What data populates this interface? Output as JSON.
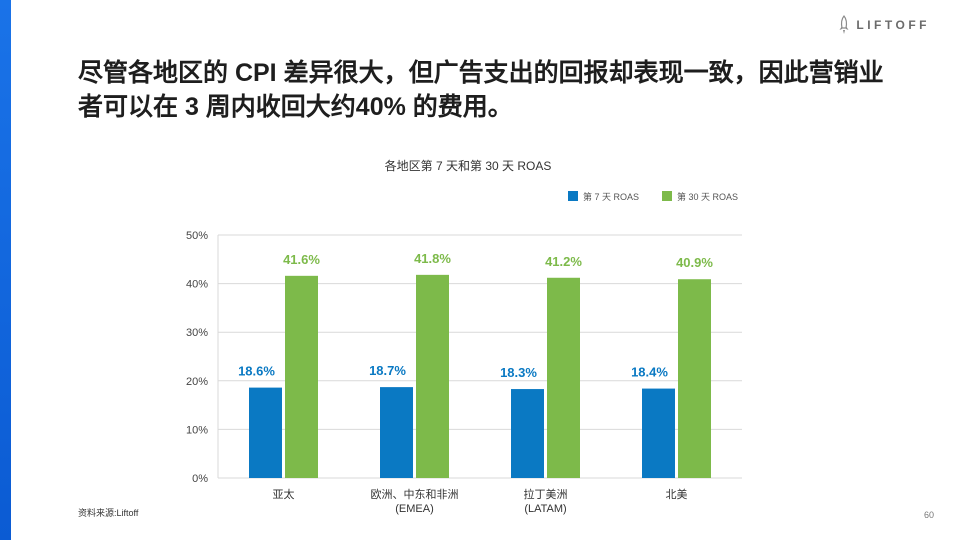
{
  "brand": {
    "logo_text": "LIFTOFF",
    "icon": "rocket-icon"
  },
  "slide": {
    "headline": "尽管各地区的 CPI 差异很大，但广告支出的回报却表现一致，因此营销业者可以在 3 周内收回大约40% 的费用。",
    "source": "资料来源:Liftoff",
    "page_number": "60"
  },
  "colors": {
    "accent": "#1a73e8",
    "day7": "#0a79c3",
    "day30": "#7dba4a",
    "grid": "#d9d9d9"
  },
  "chart_data": {
    "type": "bar",
    "title": "各地区第 7 天和第 30 天 ROAS",
    "legend_position": "top-right",
    "categories": [
      [
        "亚太"
      ],
      [
        "欧洲、中东和非洲",
        "(EMEA)"
      ],
      [
        "拉丁美洲",
        "(LATAM)"
      ],
      [
        "北美"
      ]
    ],
    "series": [
      {
        "name": "第 7 天 ROAS",
        "values": [
          18.6,
          18.7,
          18.3,
          18.4
        ],
        "labels": [
          "18.6%",
          "18.7%",
          "18.3%",
          "18.4%"
        ]
      },
      {
        "name": "第 30 天 ROAS",
        "values": [
          41.6,
          41.8,
          41.2,
          40.9
        ],
        "labels": [
          "41.6%",
          "41.8%",
          "41.2%",
          "40.9%"
        ]
      }
    ],
    "yticks": [
      "0%",
      "10%",
      "20%",
      "30%",
      "40%",
      "50%"
    ],
    "ylim": [
      0,
      50
    ],
    "grid": true
  }
}
